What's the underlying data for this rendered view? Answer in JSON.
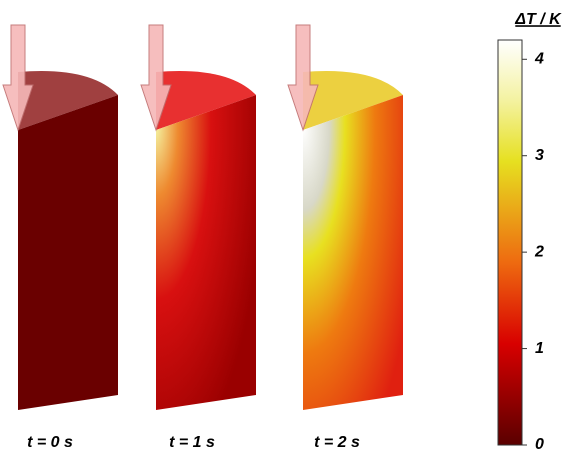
{
  "panels": [
    {
      "label": "t = 0 s"
    },
    {
      "label": "t = 1 s"
    },
    {
      "label": "t = 2 s"
    }
  ],
  "colorbar": {
    "title": "ΔT / K",
    "lim": [
      0,
      4.2
    ],
    "ticks": [
      0,
      1,
      2,
      3,
      4
    ]
  }
}
